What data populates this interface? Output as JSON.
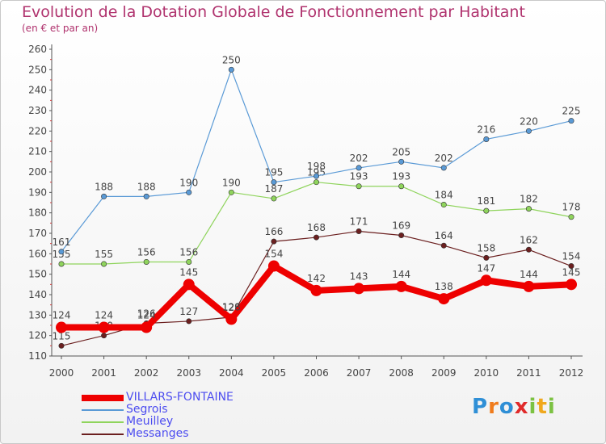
{
  "chart_data": {
    "type": "line",
    "title": "Evolution de la Dotation Globale de Fonctionnement par Habitant",
    "subtitle": "(en € et par an)",
    "xlabel": "",
    "ylabel": "",
    "ylim": [
      110,
      260
    ],
    "ytick_step": 10,
    "grid": false,
    "legend_position": "bottom-left",
    "categories": [
      "2000",
      "2001",
      "2002",
      "2003",
      "2004",
      "2005",
      "2006",
      "2007",
      "2008",
      "2009",
      "2010",
      "2011",
      "2012"
    ],
    "series": [
      {
        "name": "Messanges",
        "color": "#6b1f1f",
        "values": [
          115,
          120,
          126,
          127,
          129,
          166,
          168,
          171,
          169,
          164,
          158,
          162,
          154
        ]
      },
      {
        "name": "Meuilley",
        "color": "#8fd45c",
        "values": [
          155,
          155,
          156,
          156,
          190,
          187,
          195,
          193,
          193,
          184,
          181,
          182,
          178
        ]
      },
      {
        "name": "Segrois",
        "color": "#5a9ad6",
        "values": [
          161,
          188,
          188,
          190,
          250,
          195,
          198,
          202,
          205,
          202,
          216,
          220,
          225
        ]
      },
      {
        "name": "VILLARS-FONTAINE",
        "color": "#ee0000",
        "values": [
          124,
          124,
          124,
          145,
          128,
          154,
          142,
          143,
          144,
          138,
          147,
          144,
          145
        ]
      }
    ],
    "legend_order": [
      "VILLARS-FONTAINE",
      "Segrois",
      "Meuilley",
      "Messanges"
    ]
  },
  "logo": {
    "letters": [
      {
        "ch": "P",
        "color": "#2f8fd6"
      },
      {
        "ch": "r",
        "color": "#f07c1d"
      },
      {
        "ch": "o",
        "color": "#2f8fd6"
      },
      {
        "ch": "x",
        "color": "#e02a2a"
      },
      {
        "ch": "i",
        "color": "#7cc242"
      },
      {
        "ch": "t",
        "color": "#f0a81d"
      },
      {
        "ch": "i",
        "color": "#7cc242"
      }
    ]
  }
}
